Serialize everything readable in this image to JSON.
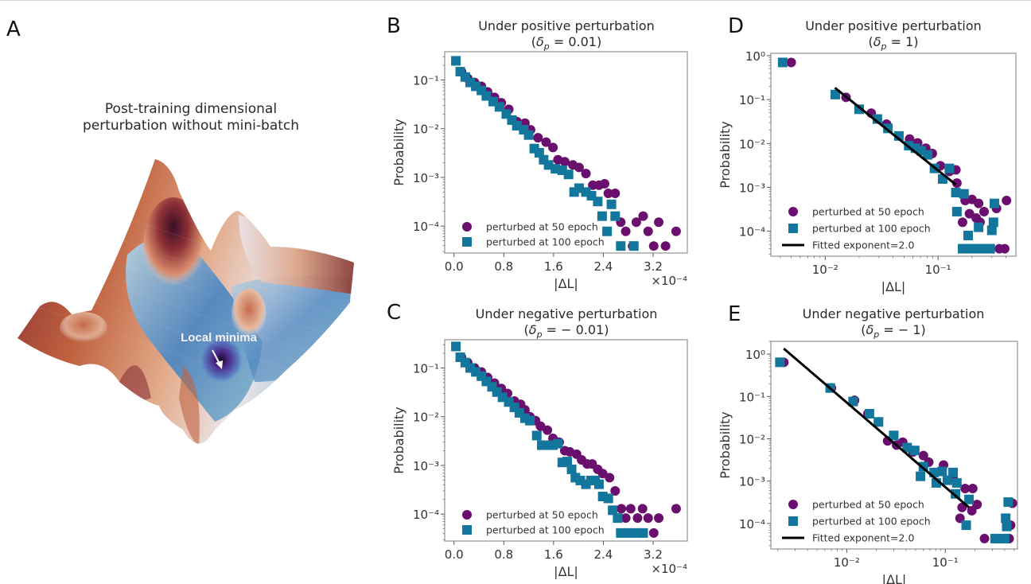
{
  "figure": {
    "panelA": {
      "letter": "A",
      "title_line1": "Post-training dimensional",
      "title_line2": "perturbation without mini-batch",
      "annotation": "Local minima",
      "colormap": {
        "high": "#7a1e2e",
        "mid_high": "#d88a64",
        "neutral": "#ece4ea",
        "mid_low": "#6fa6c7",
        "low": "#3a1a6e"
      }
    },
    "colors": {
      "epoch50": "#6a0f6e",
      "epoch100": "#13769c",
      "fit": "#000000",
      "frame": "#9a9a9a"
    }
  },
  "chart_data": [
    {
      "id": "B",
      "letter": "B",
      "type": "scatter",
      "title": "Under positive perturbation",
      "subtitle": "(δp = 0.01)",
      "subtitle_parts": {
        "symbol": "δ",
        "sub": "p",
        "rest": " = 0.01)"
      },
      "xlabel": "|ΔL|",
      "ylabel": "Probability",
      "x_multiplier": "×10⁻⁴",
      "xscale": "linear",
      "yscale": "log",
      "xlim": [
        -0.15,
        3.75
      ],
      "ylim": [
        2.8e-05,
        0.38
      ],
      "xticks": [
        0.0,
        0.8,
        1.6,
        2.4,
        3.2
      ],
      "xtick_labels": [
        "0.0",
        "0.8",
        "1.6",
        "2.4",
        "3.2"
      ],
      "yticks": [
        0.1,
        0.01,
        0.001,
        0.0001
      ],
      "ytick_labels": [
        "10⁻¹",
        "10⁻²",
        "10⁻³",
        "10⁻⁴"
      ],
      "legend_position": "bottom-left",
      "series": [
        {
          "name": "perturbed at 50 epoch",
          "marker": "circle",
          "x": [
            0.12,
            0.22,
            0.33,
            0.44,
            0.54,
            0.65,
            0.76,
            0.88,
            1.01,
            1.14,
            1.23,
            1.35,
            1.48,
            1.59,
            1.67,
            1.78,
            1.91,
            2.01,
            2.12,
            2.23,
            2.33,
            2.42,
            2.48,
            2.59,
            2.68,
            2.76,
            2.93,
            3.04,
            3.12,
            3.29,
            2.87,
            3.21,
            3.4,
            3.57
          ],
          "y": [
            0.148,
            0.108,
            0.089,
            0.074,
            0.057,
            0.044,
            0.034,
            0.025,
            0.014,
            0.013,
            0.0095,
            0.0065,
            0.0053,
            0.0041,
            0.0023,
            0.0021,
            0.0018,
            0.0016,
            0.0012,
            0.00069,
            0.00069,
            0.00074,
            0.00047,
            0.00047,
            0.00012,
            7.8e-05,
            0.00012,
            0.00016,
            7.8e-05,
            0.00012,
            3.9e-05,
            3.9e-05,
            3.9e-05,
            7.8e-05
          ]
        },
        {
          "name": "perturbed at 100 epoch",
          "marker": "square",
          "x": [
            0.03,
            0.1,
            0.18,
            0.26,
            0.35,
            0.44,
            0.52,
            0.63,
            0.73,
            0.84,
            0.93,
            1.01,
            1.12,
            1.2,
            1.29,
            1.37,
            1.44,
            1.52,
            1.63,
            1.74,
            1.84,
            1.93,
            2.01,
            2.12,
            2.21,
            2.31,
            2.38,
            2.46,
            2.53,
            2.59,
            2.68,
            2.89
          ],
          "y": [
            0.247,
            0.148,
            0.115,
            0.089,
            0.074,
            0.061,
            0.047,
            0.036,
            0.028,
            0.02,
            0.015,
            0.0115,
            0.0095,
            0.0074,
            0.0039,
            0.0032,
            0.0023,
            0.0018,
            0.0015,
            0.0014,
            0.00115,
            0.0005,
            0.0006,
            0.0005,
            0.00042,
            0.00032,
            0.00016,
            7.8e-05,
            0.00028,
            0.00016,
            3.9e-05,
            3.9e-05
          ]
        }
      ]
    },
    {
      "id": "C",
      "letter": "C",
      "type": "scatter",
      "title": "Under negative perturbation",
      "subtitle": "(δp = − 0.01)",
      "subtitle_parts": {
        "symbol": "δ",
        "sub": "p",
        "rest": " = − 0.01)"
      },
      "xlabel": "|ΔL|",
      "ylabel": "Probability",
      "x_multiplier": "×10⁻⁴",
      "xscale": "linear",
      "yscale": "log",
      "xlim": [
        -0.15,
        3.75
      ],
      "ylim": [
        2.8e-05,
        0.38
      ],
      "xticks": [
        0.0,
        0.8,
        1.6,
        2.4,
        3.2
      ],
      "xtick_labels": [
        "0.0",
        "0.8",
        "1.6",
        "2.4",
        "3.2"
      ],
      "yticks": [
        0.1,
        0.01,
        0.001,
        0.0001
      ],
      "ytick_labels": [
        "10⁻¹",
        "10⁻²",
        "10⁻³",
        "10⁻⁴"
      ],
      "legend_position": "bottom-left",
      "series": [
        {
          "name": "perturbed at 50 epoch",
          "marker": "circle",
          "x": [
            0.12,
            0.22,
            0.33,
            0.44,
            0.54,
            0.65,
            0.76,
            0.86,
            0.97,
            1.07,
            1.14,
            1.22,
            1.31,
            1.39,
            1.5,
            1.59,
            1.69,
            1.78,
            1.86,
            1.97,
            2.05,
            2.14,
            2.22,
            2.31,
            2.39,
            2.5,
            2.59,
            2.69,
            2.84,
            3.03,
            2.76,
            2.95,
            3.12,
            3.29,
            3.21,
            3.57
          ],
          "y": [
            0.166,
            0.129,
            0.1,
            0.083,
            0.064,
            0.049,
            0.038,
            0.03,
            0.021,
            0.018,
            0.0138,
            0.01,
            0.0083,
            0.0064,
            0.0053,
            0.0036,
            0.003,
            0.002,
            0.0019,
            0.0017,
            0.0013,
            0.00107,
            0.00107,
            0.00083,
            0.00068,
            0.00056,
            0.0003,
            0.000129,
            0.000129,
            0.000129,
            8.3e-05,
            8.3e-05,
            8.3e-05,
            8.3e-05,
            4.1e-05,
            0.000129
          ]
        },
        {
          "name": "perturbed at 100 epoch",
          "marker": "square",
          "x": [
            0.03,
            0.1,
            0.18,
            0.26,
            0.35,
            0.44,
            0.52,
            0.61,
            0.69,
            0.78,
            0.88,
            0.97,
            1.05,
            1.14,
            1.22,
            1.33,
            1.41,
            1.5,
            1.59,
            1.67,
            1.74,
            1.82,
            1.89,
            1.95,
            2.03,
            2.12,
            2.2,
            2.27,
            2.33,
            2.39,
            2.48,
            2.55,
            2.63,
            2.68,
            2.8,
            2.93,
            3.04
          ],
          "y": [
            0.277,
            0.166,
            0.129,
            0.1,
            0.083,
            0.068,
            0.053,
            0.041,
            0.032,
            0.025,
            0.02,
            0.0155,
            0.012,
            0.0093,
            0.0083,
            0.0041,
            0.0026,
            0.0026,
            0.0026,
            0.0028,
            0.00115,
            0.0012,
            0.00083,
            0.00056,
            0.00049,
            0.00041,
            0.00049,
            0.00049,
            0.00041,
            0.00023,
            0.00021,
            0.00012,
            8.3e-05,
            4.1e-05,
            4.1e-05,
            4.1e-05,
            4.1e-05
          ]
        }
      ]
    },
    {
      "id": "D",
      "letter": "D",
      "type": "scatter",
      "title": "Under positive perturbation",
      "subtitle": "(δp = 1)",
      "subtitle_parts": {
        "symbol": "δ",
        "sub": "p",
        "rest": " = 1)"
      },
      "xlabel": "|ΔL|",
      "ylabel": "Probability",
      "xscale": "log",
      "yscale": "log",
      "xlim": [
        0.0033,
        0.49
      ],
      "ylim": [
        2.7e-05,
        1.13
      ],
      "xticks": [
        0.01,
        0.1
      ],
      "xtick_labels": [
        "10⁻²",
        "10⁻¹"
      ],
      "yticks": [
        1,
        0.1,
        0.01,
        0.001,
        0.0001
      ],
      "ytick_labels": [
        "10⁰",
        "10⁻¹",
        "10⁻²",
        "10⁻³",
        "10⁻⁴"
      ],
      "legend_position": "bottom-left",
      "fit": {
        "name": "Fitted exponent=2.0",
        "exponent": 2.0,
        "x": [
          0.0122,
          0.144
        ],
        "y": [
          0.185,
          0.00115
        ]
      },
      "series": [
        {
          "name": "perturbed at 50 epoch",
          "marker": "circle",
          "x": [
            0.005,
            0.0153,
            0.0256,
            0.035,
            0.056,
            0.066,
            0.078,
            0.089,
            0.105,
            0.126,
            0.144,
            0.147,
            0.174,
            0.2,
            0.229,
            0.256,
            0.165,
            0.19,
            0.218,
            0.236,
            0.33,
            0.405,
            0.35,
            0.39
          ],
          "y": [
            0.7,
            0.112,
            0.049,
            0.0275,
            0.0126,
            0.0103,
            0.0078,
            0.0059,
            0.0031,
            0.0023,
            0.0025,
            0.00125,
            0.0005,
            0.00053,
            0.00043,
            0.00028,
            0.00016,
            0.00025,
            0.0002,
            0.00016,
            0.00033,
            0.0005,
            4e-05,
            4e-05
          ]
        },
        {
          "name": "perturbed at 100 epoch",
          "marker": "square",
          "x": [
            0.0042,
            0.0123,
            0.02,
            0.029,
            0.036,
            0.045,
            0.055,
            0.063,
            0.071,
            0.081,
            0.093,
            0.11,
            0.126,
            0.144,
            0.17,
            0.147,
            0.185,
            0.229,
            0.31,
            0.3,
            0.316,
            0.165,
            0.19,
            0.22,
            0.25,
            0.29
          ],
          "y": [
            0.7,
            0.13,
            0.06,
            0.036,
            0.022,
            0.0148,
            0.0089,
            0.0078,
            0.0068,
            0.0055,
            0.0027,
            0.00155,
            0.0027,
            0.00076,
            0.00071,
            0.00028,
            8e-05,
            0.000123,
            0.00016,
            0.000105,
            0.00043,
            4e-05,
            4e-05,
            4e-05,
            4e-05,
            4e-05
          ]
        }
      ]
    },
    {
      "id": "E",
      "letter": "E",
      "type": "scatter",
      "title": "Under negative perturbation",
      "subtitle": "(δp = − 1)",
      "subtitle_parts": {
        "symbol": "δ",
        "sub": "p",
        "rest": " = − 1)"
      },
      "xlabel": "|ΔL|",
      "ylabel": "Probability",
      "xscale": "log",
      "yscale": "log",
      "xlim": [
        0.0017,
        0.54
      ],
      "ylim": [
        2.5e-05,
        2.0
      ],
      "xticks": [
        0.01,
        0.1
      ],
      "xtick_labels": [
        "10⁻²",
        "10⁻¹"
      ],
      "yticks": [
        1,
        0.1,
        0.01,
        0.001,
        0.0001
      ],
      "ytick_labels": [
        "10⁰",
        "10⁻¹",
        "10⁻²",
        "10⁻³",
        "10⁻⁴"
      ],
      "legend_position": "bottom-left",
      "fit": {
        "name": "Fitted exponent=2.0",
        "exponent": 2.0,
        "x": [
          0.0023,
          0.174
        ],
        "y": [
          1.35,
          0.00024
        ]
      },
      "series": [
        {
          "name": "perturbed at 50 epoch",
          "marker": "circle",
          "x": [
            0.0023,
            0.007,
            0.012,
            0.0164,
            0.021,
            0.026,
            0.032,
            0.037,
            0.047,
            0.06,
            0.068,
            0.096,
            0.12,
            0.159,
            0.19,
            0.148,
            0.141,
            0.186,
            0.21,
            0.25,
            0.445,
            0.48,
            0.46
          ],
          "y": [
            0.64,
            0.158,
            0.081,
            0.039,
            0.025,
            0.0089,
            0.0071,
            0.0083,
            0.0049,
            0.004,
            0.0028,
            0.0024,
            0.0012,
            0.00067,
            0.00067,
            0.00024,
            0.000133,
            0.0002,
            0.00028,
            4.4e-05,
            4.4e-05,
            0.0003,
            9.1e-05
          ]
        },
        {
          "name": "perturbed at 100 epoch",
          "marker": "square",
          "x": [
            0.0021,
            0.0068,
            0.0116,
            0.017,
            0.021,
            0.03,
            0.041,
            0.049,
            0.06,
            0.077,
            0.093,
            0.12,
            0.056,
            0.081,
            0.105,
            0.131,
            0.127,
            0.174,
            0.163,
            0.435,
            0.41,
            0.42,
            0.32,
            0.36,
            0.4
          ],
          "y": [
            0.64,
            0.158,
            0.076,
            0.039,
            0.025,
            0.012,
            0.0062,
            0.0053,
            0.0022,
            0.0016,
            0.0017,
            0.0016,
            0.0013,
            0.00091,
            0.00105,
            0.00091,
            0.0005,
            0.00037,
            9.1e-05,
            0.00032,
            0.000133,
            8.5e-05,
            4.4e-05,
            4.4e-05,
            4.4e-05
          ]
        }
      ]
    }
  ]
}
